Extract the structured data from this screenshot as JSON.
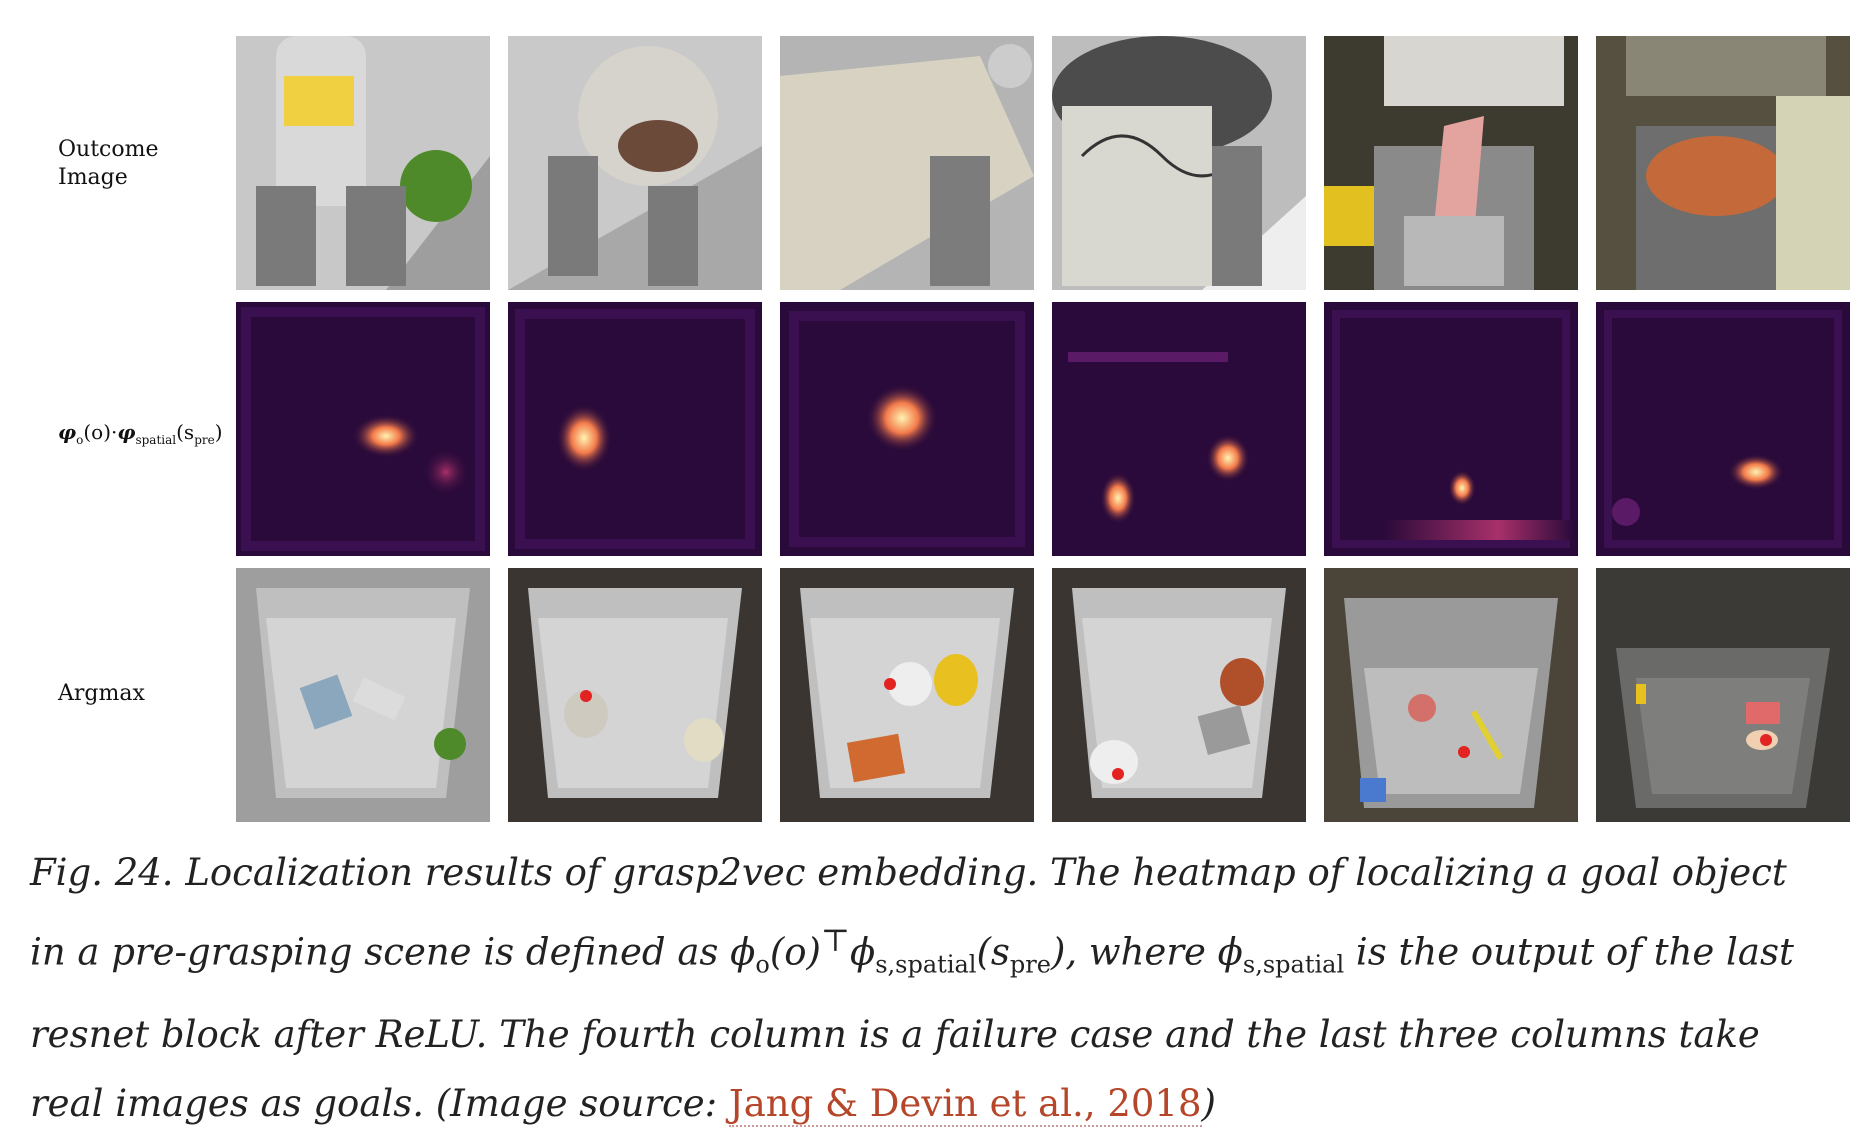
{
  "row_labels": {
    "outcome_line1": "Outcome",
    "outcome_line2": "Image",
    "heatmap_phi1": "φ",
    "heatmap_sub1": "o",
    "heatmap_mid": "(o)·",
    "heatmap_phi2": "φ",
    "heatmap_sub2": "spatial",
    "heatmap_arg": "(s",
    "heatmap_sub3": "pre",
    "heatmap_close": ")",
    "argmax": "Argmax"
  },
  "caption": {
    "part1": "Fig. 24. Localization results of grasp2vec embedding. The heatmap of localizing a goal object in a pre-grasping scene is defined as ",
    "math1": "ϕ",
    "math1_sub": "o",
    "math1_rest": "(o)",
    "math1_sup": "⊤",
    "math2": "ϕ",
    "math2_sub": "s,spatial",
    "math2_arg": "(s",
    "math2_argsub": "pre",
    "math2_close": ")",
    "part2": ", where ",
    "math3": "ϕ",
    "math3_sub": "s,spatial",
    "part3": " is the output of the last resnet block after ReLU. The fourth column is a failure case and the last three columns take real images as goals. (Image source: ",
    "link": "Jang & Devin et al., 2018",
    "part4": ")"
  },
  "colors": {
    "heatmap_bg": "#2a0a3a",
    "heatmap_hot": "#fde9a8",
    "tray_gray": "#b4b4b4",
    "link": "#b5462a",
    "argmax_dot": "#e32222"
  }
}
